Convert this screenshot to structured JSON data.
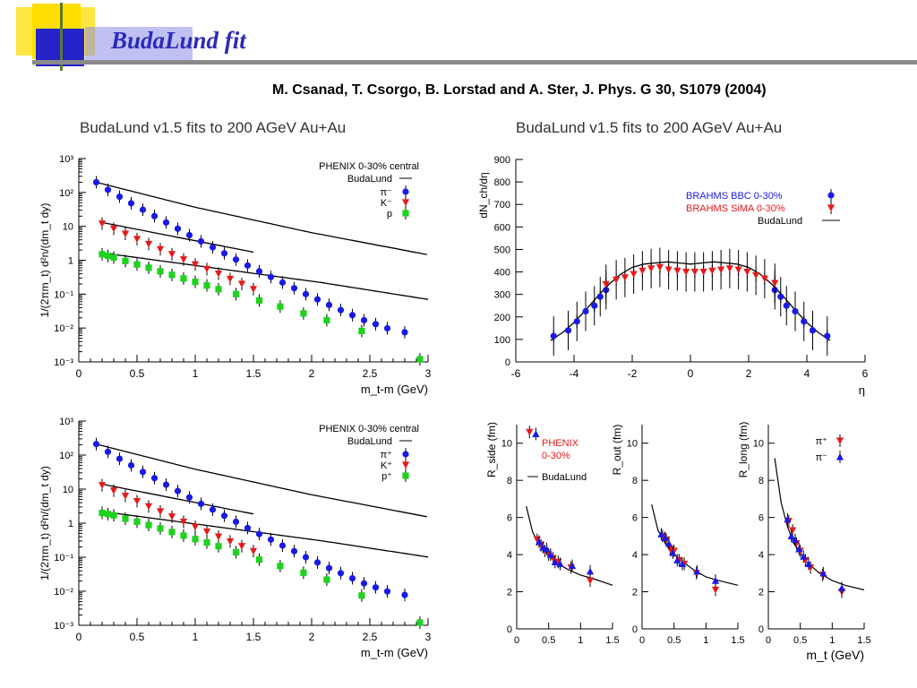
{
  "slide": {
    "title": "BudaLund fit",
    "citation": "M. Csanad, T. Csorgo, B. Lorstad and A. Ster, J. Phys. G 30, S1079 (2004)"
  },
  "colors": {
    "title": "#2b2bb8",
    "deco_yellow": "#ffde00",
    "deco_blue": "#2323c8",
    "deco_green": "#5a7a2a",
    "pion": "#1a1ae6",
    "kaon": "#e61a1a",
    "proton": "#1ed21e",
    "curve": "#000000"
  },
  "headers": {
    "left": "BudaLund v1.5 fits to 200 AGeV Au+Au",
    "right": "BudaLund v1.5 fits to 200 AGeV Au+Au"
  },
  "chart_data": [
    {
      "id": "spectra-negative",
      "type": "scatter",
      "xlabel": "m_t-m (GeV)",
      "ylabel": "1/(2πm_t) d²n/(dm_t dy)",
      "xlim": [
        0,
        3
      ],
      "ylim": [
        0.001,
        1000
      ],
      "yscale": "log",
      "xticks": [
        "0",
        "0.5",
        "1",
        "1.5",
        "2",
        "2.5",
        "3"
      ],
      "yticks": [
        "10⁻³",
        "10⁻²",
        "10⁻¹",
        "1",
        "10",
        "10²",
        "10³"
      ],
      "legend": {
        "header": "PHENIX 0-30% central",
        "fit": "BudaLund",
        "placement": "top-right"
      },
      "series": [
        {
          "name": "π⁻",
          "color": "pion",
          "marker": "circle",
          "x": [
            0.15,
            0.25,
            0.35,
            0.45,
            0.55,
            0.65,
            0.75,
            0.85,
            0.95,
            1.05,
            1.15,
            1.25,
            1.35,
            1.45,
            1.55,
            1.65,
            1.75,
            1.85,
            1.95,
            2.05,
            2.15,
            2.25,
            2.35,
            2.45,
            2.55,
            2.65,
            2.8
          ],
          "y": [
            200,
            120,
            75,
            48,
            31,
            20,
            13,
            8.5,
            5.5,
            3.6,
            2.4,
            1.6,
            1.05,
            0.7,
            0.47,
            0.32,
            0.22,
            0.15,
            0.1,
            0.07,
            0.048,
            0.034,
            0.024,
            0.017,
            0.013,
            0.0098,
            0.0075
          ]
        },
        {
          "name": "K⁻",
          "color": "kaon",
          "marker": "triangle-down",
          "x": [
            0.2,
            0.3,
            0.4,
            0.5,
            0.6,
            0.7,
            0.8,
            0.9,
            1.0,
            1.1,
            1.2,
            1.3,
            1.4,
            1.5
          ],
          "y": [
            12,
            8.5,
            6,
            4.2,
            3,
            2.1,
            1.5,
            1.05,
            0.75,
            0.55,
            0.4,
            0.28,
            0.2,
            0.14
          ]
        },
        {
          "name": "p",
          "color": "proton",
          "marker": "square",
          "x": [
            0.2,
            0.25,
            0.3,
            0.4,
            0.5,
            0.6,
            0.7,
            0.8,
            0.9,
            1.0,
            1.1,
            1.2,
            1.35,
            1.55,
            1.73,
            1.93,
            2.13,
            2.43,
            2.93
          ],
          "y": [
            1.5,
            1.35,
            1.2,
            0.95,
            0.75,
            0.6,
            0.47,
            0.37,
            0.29,
            0.23,
            0.18,
            0.14,
            0.1,
            0.065,
            0.043,
            0.027,
            0.017,
            0.0082,
            0.0012
          ]
        }
      ],
      "fits": [
        {
          "x": [
            0.15,
            3.0
          ],
          "y0": 200,
          "slopes": [
            [
              0.15,
              -2.0
            ],
            [
              1.0,
              -1.73
            ],
            [
              2.0,
              -1.5
            ]
          ]
        },
        {
          "x": [
            0.2,
            1.5
          ],
          "y0": 13,
          "slopes": [
            [
              0.2,
              -1.55
            ]
          ]
        },
        {
          "x": [
            0.2,
            3.0
          ],
          "y0": 1.65,
          "slopes": [
            [
              0.2,
              -1.07
            ],
            [
              2.1,
              -1.25
            ]
          ]
        }
      ]
    },
    {
      "id": "spectra-positive",
      "type": "scatter",
      "xlabel": "m_t-m (GeV)",
      "ylabel": "1/(2πm_t) d²n/(dm_t dy)",
      "xlim": [
        0,
        3
      ],
      "ylim": [
        0.001,
        1000
      ],
      "yscale": "log",
      "xticks": [
        "0",
        "0.5",
        "1",
        "1.5",
        "2",
        "2.5",
        "3"
      ],
      "yticks": [
        "10⁻³",
        "10⁻²",
        "10⁻¹",
        "1",
        "10",
        "10²",
        "10³"
      ],
      "legend": {
        "header": "PHENIX 0-30% central",
        "fit": "BudaLund",
        "placement": "top-right"
      },
      "series": [
        {
          "name": "π⁺",
          "color": "pion",
          "marker": "circle",
          "x": [
            0.15,
            0.25,
            0.35,
            0.45,
            0.55,
            0.65,
            0.75,
            0.85,
            0.95,
            1.05,
            1.15,
            1.25,
            1.35,
            1.45,
            1.55,
            1.65,
            1.75,
            1.85,
            1.95,
            2.05,
            2.15,
            2.25,
            2.35,
            2.45,
            2.55,
            2.65,
            2.8
          ],
          "y": [
            210,
            125,
            78,
            50,
            32,
            21,
            13.5,
            8.8,
            5.7,
            3.7,
            2.5,
            1.65,
            1.1,
            0.72,
            0.48,
            0.33,
            0.22,
            0.15,
            0.1,
            0.07,
            0.048,
            0.034,
            0.024,
            0.017,
            0.013,
            0.0099,
            0.0078
          ]
        },
        {
          "name": "K⁺",
          "color": "kaon",
          "marker": "triangle-down",
          "x": [
            0.2,
            0.3,
            0.4,
            0.5,
            0.6,
            0.7,
            0.8,
            0.9,
            1.0,
            1.1,
            1.2,
            1.3,
            1.4,
            1.5
          ],
          "y": [
            13,
            9,
            6.3,
            4.4,
            3.1,
            2.2,
            1.55,
            1.1,
            0.78,
            0.56,
            0.4,
            0.29,
            0.21,
            0.15
          ]
        },
        {
          "name": "p⁺",
          "color": "proton",
          "marker": "square",
          "x": [
            0.2,
            0.25,
            0.3,
            0.4,
            0.5,
            0.6,
            0.7,
            0.8,
            0.9,
            1.0,
            1.1,
            1.2,
            1.35,
            1.55,
            1.73,
            1.93,
            2.13,
            2.43,
            2.93
          ],
          "y": [
            2.0,
            1.85,
            1.7,
            1.35,
            1.1,
            0.88,
            0.7,
            0.55,
            0.43,
            0.34,
            0.27,
            0.21,
            0.14,
            0.085,
            0.055,
            0.035,
            0.022,
            0.0075,
            0.0012
          ]
        }
      ],
      "fits": [
        {
          "x": [
            0.15,
            3.0
          ],
          "y0": 210,
          "slopes": [
            [
              0.15,
              -2.0
            ],
            [
              1.0,
              -1.73
            ],
            [
              2.0,
              -1.5
            ]
          ]
        },
        {
          "x": [
            0.2,
            1.5
          ],
          "y0": 14,
          "slopes": [
            [
              0.2,
              -1.55
            ]
          ]
        },
        {
          "x": [
            0.2,
            3.0
          ],
          "y0": 2.2,
          "slopes": [
            [
              0.2,
              -1.05
            ],
            [
              2.1,
              -1.2
            ]
          ]
        }
      ]
    },
    {
      "id": "pseudorapidity",
      "type": "scatter",
      "xlabel": "η",
      "ylabel": "dN_ch/dη",
      "xlim": [
        -6,
        6
      ],
      "ylim": [
        0,
        900
      ],
      "xticks": [
        "-6",
        "-4",
        "-2",
        "0",
        "2",
        "4",
        "6"
      ],
      "yticks": [
        "0",
        "100",
        "200",
        "300",
        "400",
        "500",
        "600",
        "700",
        "800",
        "900"
      ],
      "legend": {
        "entries": [
          "BRAHMS BBC  0-30%",
          "BRAHMS SiMA 0-30%"
        ],
        "fit": "BudaLund",
        "placement": "top-right"
      },
      "series": [
        {
          "name": "BRAHMS BBC  0-30%",
          "color": "pion",
          "marker": "circle",
          "x": [
            -4.7,
            -4.2,
            -3.9,
            -3.6,
            -3.3,
            -3.1,
            -2.9,
            2.9,
            3.1,
            3.3,
            3.6,
            3.9,
            4.2,
            4.7
          ],
          "y": [
            115,
            140,
            180,
            225,
            250,
            290,
            320,
            320,
            290,
            250,
            225,
            180,
            140,
            115
          ]
        },
        {
          "name": "BRAHMS SiMA 0-30%",
          "color": "kaon",
          "marker": "triangle-down",
          "x": [
            -2.9,
            -2.55,
            -2.25,
            -1.95,
            -1.65,
            -1.35,
            -1.05,
            -0.75,
            -0.45,
            -0.15,
            0.15,
            0.45,
            0.75,
            1.05,
            1.35,
            1.65,
            1.95,
            2.25,
            2.55,
            2.9
          ],
          "y": [
            345,
            365,
            375,
            390,
            405,
            415,
            420,
            410,
            405,
            400,
            400,
            400,
            405,
            410,
            415,
            410,
            400,
            385,
            370,
            350
          ]
        }
      ],
      "fit_curve": {
        "x": [
          -4.8,
          -4.4,
          -4,
          -3.6,
          -3.2,
          -2.8,
          -2.4,
          -2,
          -1.6,
          -1.2,
          -0.8,
          -0.4,
          0,
          0.4,
          0.8,
          1.2,
          1.6,
          2,
          2.4,
          2.8,
          3.2,
          3.6,
          4,
          4.4,
          4.8
        ],
        "y": [
          95,
          130,
          175,
          230,
          290,
          345,
          390,
          420,
          435,
          440,
          445,
          440,
          435,
          440,
          445,
          440,
          435,
          420,
          390,
          345,
          290,
          230,
          175,
          130,
          95
        ]
      }
    },
    {
      "id": "r-side",
      "type": "scatter",
      "ylabel": "R_side (fm)",
      "xlim": [
        0,
        1.5
      ],
      "ylim": [
        0,
        11
      ],
      "xticks": [
        "0",
        "0.5",
        "1",
        "1.5"
      ],
      "yticks": [
        "0",
        "2",
        "4",
        "6",
        "8",
        "10"
      ],
      "legend": {
        "header": "PHENIX\n0-30%",
        "fit": "BudaLund",
        "placement": "top"
      },
      "series": [
        {
          "name": "π⁺",
          "color": "kaon",
          "marker": "triangle-down",
          "x": [
            0.2,
            0.32,
            0.38,
            0.44,
            0.5,
            0.57,
            0.65,
            0.85,
            1.15
          ],
          "y": [
            10.6,
            4.8,
            4.5,
            4.2,
            4.0,
            3.8,
            3.6,
            3.3,
            2.6
          ]
        },
        {
          "name": "π⁻",
          "color": "pion",
          "marker": "triangle-up",
          "x": [
            0.3,
            0.35,
            0.41,
            0.47,
            0.53,
            0.6,
            0.68,
            0.87,
            1.15
          ],
          "y": [
            10.5,
            4.7,
            4.4,
            4.3,
            4.0,
            3.6,
            3.5,
            3.4,
            3.1
          ]
        }
      ],
      "fit_curve": {
        "x": [
          0.15,
          0.25,
          0.4,
          0.6,
          0.8,
          1.0,
          1.2,
          1.5
        ],
        "y": [
          6.6,
          5.2,
          4.3,
          3.6,
          3.2,
          2.9,
          2.7,
          2.35
        ]
      }
    },
    {
      "id": "r-out",
      "type": "scatter",
      "ylabel": "R_out (fm)",
      "xlim": [
        0,
        1.5
      ],
      "ylim": [
        0,
        11
      ],
      "xticks": [
        "0",
        "0.5",
        "1",
        "1.5"
      ],
      "yticks": [
        "0",
        "2",
        "4",
        "6",
        "8",
        "10"
      ],
      "series": [
        {
          "name": "π⁺",
          "color": "kaon",
          "marker": "triangle-down",
          "x": [
            0.32,
            0.38,
            0.44,
            0.5,
            0.58,
            0.66,
            0.85,
            1.15
          ],
          "y": [
            5.0,
            4.8,
            4.3,
            4.2,
            3.7,
            3.5,
            3.0,
            2.1
          ]
        },
        {
          "name": "π⁻",
          "color": "pion",
          "marker": "triangle-up",
          "x": [
            0.3,
            0.36,
            0.42,
            0.48,
            0.55,
            0.63,
            0.86,
            1.15
          ],
          "y": [
            5.1,
            4.9,
            4.6,
            4.1,
            3.7,
            3.5,
            3.1,
            2.6
          ]
        }
      ],
      "fit_curve": {
        "x": [
          0.15,
          0.25,
          0.4,
          0.6,
          0.8,
          1.0,
          1.2,
          1.5
        ],
        "y": [
          6.7,
          5.3,
          4.4,
          3.7,
          3.2,
          2.8,
          2.6,
          2.35
        ]
      }
    },
    {
      "id": "r-long",
      "type": "scatter",
      "ylabel": "R_long (fm)",
      "xlabel": "m_t (GeV)",
      "xlim": [
        0,
        1.5
      ],
      "ylim": [
        0,
        11
      ],
      "xticks": [
        "0",
        "0.5",
        "1",
        "1.5"
      ],
      "yticks": [
        "0",
        "2",
        "4",
        "6",
        "8",
        "10"
      ],
      "legend": {
        "entries": [
          "π⁺",
          "π⁻"
        ],
        "placement": "top-right"
      },
      "series": [
        {
          "name": "π⁺",
          "color": "kaon",
          "marker": "triangle-down",
          "x": [
            0.32,
            0.38,
            0.44,
            0.5,
            0.58,
            0.66,
            0.85,
            1.15
          ],
          "y": [
            5.8,
            5.3,
            4.6,
            4.2,
            3.7,
            3.3,
            2.9,
            2.0
          ]
        },
        {
          "name": "π⁻",
          "color": "pion",
          "marker": "triangle-up",
          "x": [
            0.3,
            0.36,
            0.42,
            0.48,
            0.55,
            0.63,
            0.86,
            1.15
          ],
          "y": [
            5.9,
            5.0,
            4.8,
            4.3,
            3.9,
            3.5,
            3.0,
            2.2
          ]
        }
      ],
      "fit_curve": {
        "x": [
          0.1,
          0.2,
          0.3,
          0.4,
          0.6,
          0.8,
          1.0,
          1.2,
          1.5
        ],
        "y": [
          9.2,
          6.8,
          5.5,
          4.6,
          3.6,
          3.0,
          2.6,
          2.35,
          2.1
        ]
      }
    }
  ]
}
